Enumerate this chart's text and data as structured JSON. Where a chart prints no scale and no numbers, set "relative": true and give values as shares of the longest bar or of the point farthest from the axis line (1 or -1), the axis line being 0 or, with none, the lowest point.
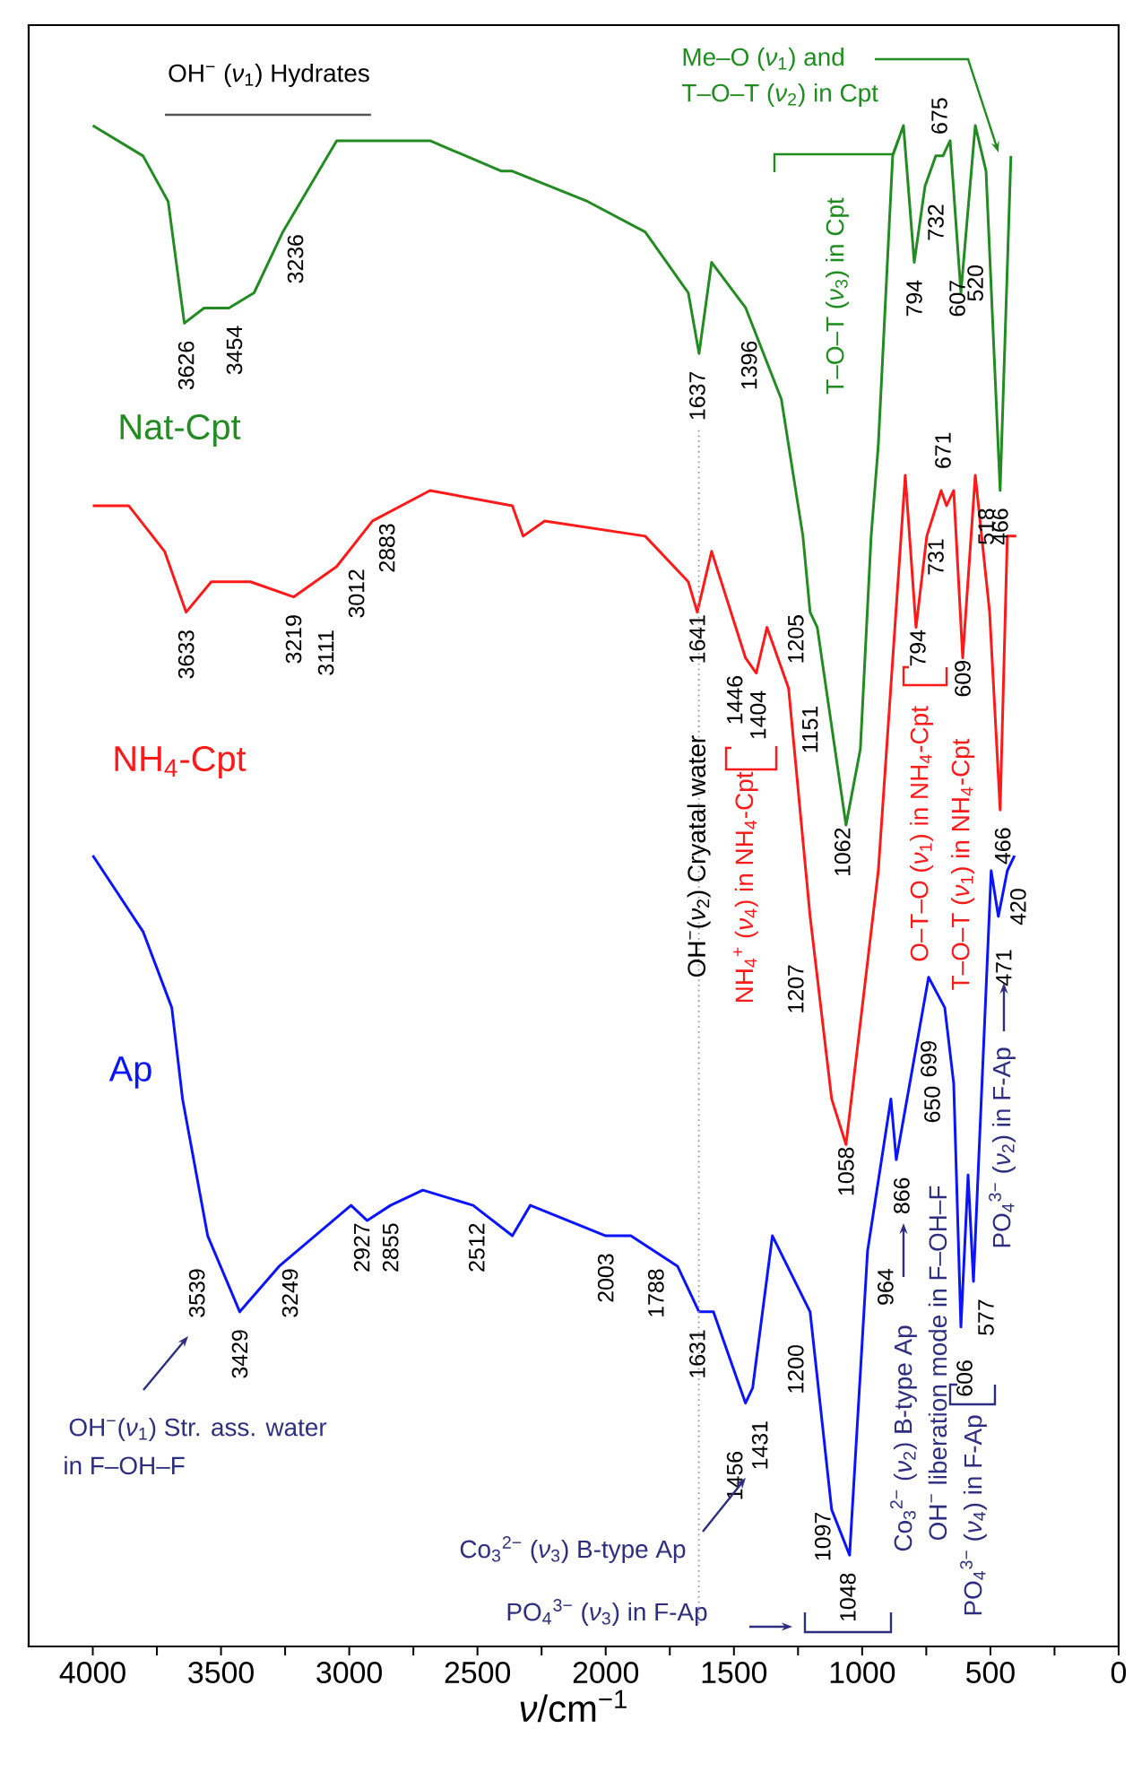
{
  "chart_data": {
    "type": "line",
    "relative": true,
    "xlabel": "*ν*/cm$^{−1}$",
    "xlim": [
      4250,
      0
    ],
    "xticks": [
      4000,
      {
        "value": 3750,
        "label": null
      },
      3500,
      {
        "value": 3250,
        "label": null
      },
      3000,
      {
        "value": 2750,
        "label": null
      },
      2500,
      {
        "value": 2250,
        "label": null
      },
      2000,
      {
        "value": 1750,
        "label": null
      },
      1500,
      {
        "value": 1250,
        "label": null
      },
      1000,
      {
        "value": 750,
        "label": null
      },
      500,
      {
        "value": 250,
        "label": null
      },
      0
    ],
    "series": [
      {
        "name": "Nat-Cpt",
        "color": "#228b22",
        "x": [
          4000,
          3804,
          3706,
          3643,
          3566,
          3469,
          3371,
          3259,
          3189,
          3049,
          2909,
          2685,
          2406,
          2364,
          2070,
          1846,
          1678,
          1636,
          1587,
          1454,
          1315,
          1231,
          1203,
          1175,
          1063,
          1007,
          965,
          937,
          881,
          839,
          797,
          755,
          713,
          685,
          657,
          615,
          559,
          517,
          462,
          420
        ],
        "values": [
          1.0,
          0.98,
          0.95,
          0.87,
          0.88,
          0.88,
          0.89,
          0.93,
          0.95,
          0.99,
          0.99,
          0.99,
          0.97,
          0.97,
          0.95,
          0.93,
          0.89,
          0.85,
          0.91,
          0.88,
          0.82,
          0.73,
          0.68,
          0.67,
          0.54,
          0.59,
          0.73,
          0.79,
          0.98,
          1.0,
          0.91,
          0.96,
          0.98,
          0.98,
          0.99,
          0.89,
          1.0,
          0.97,
          0.76,
          0.98
        ]
      },
      {
        "name": "NH$_{4}$-Cpt",
        "color": "#ff1a1a",
        "x": [
          4000,
          3860,
          3720,
          3636,
          3538,
          3385,
          3217,
          3049,
          2909,
          2685,
          2364,
          2322,
          2238,
          1846,
          1678,
          1643,
          1587,
          1455,
          1413,
          1371,
          1287,
          1203,
          1119,
          1063,
          937,
          832,
          790,
          748,
          692,
          671,
          643,
          608,
          559,
          503,
          462,
          434,
          399
        ],
        "values": [
          0.75,
          0.75,
          0.72,
          0.68,
          0.7,
          0.7,
          0.69,
          0.71,
          0.74,
          0.76,
          0.75,
          0.73,
          0.74,
          0.73,
          0.7,
          0.68,
          0.72,
          0.65,
          0.64,
          0.67,
          0.63,
          0.48,
          0.36,
          0.33,
          0.51,
          0.77,
          0.67,
          0.73,
          0.76,
          0.75,
          0.76,
          0.65,
          0.77,
          0.68,
          0.55,
          0.73,
          0.73
        ]
      },
      {
        "name": "Ap",
        "color": "#0a14ff",
        "x": [
          4000,
          3804,
          3692,
          3650,
          3552,
          3427,
          3273,
          2993,
          2930,
          2839,
          2713,
          2517,
          2364,
          2294,
          2000,
          1902,
          1720,
          1636,
          1580,
          1455,
          1427,
          1350,
          1203,
          1119,
          1049,
          979,
          888,
          867,
          741,
          678,
          643,
          615,
          587,
          566,
          497,
          469,
          434,
          406
        ],
        "values": [
          0.52,
          0.47,
          0.42,
          0.36,
          0.27,
          0.22,
          0.25,
          0.29,
          0.28,
          0.29,
          0.3,
          0.29,
          0.27,
          0.29,
          0.27,
          0.27,
          0.25,
          0.22,
          0.22,
          0.16,
          0.17,
          0.27,
          0.22,
          0.09,
          0.06,
          0.26,
          0.36,
          0.32,
          0.44,
          0.42,
          0.37,
          0.21,
          0.31,
          0.24,
          0.51,
          0.48,
          0.51,
          0.52
        ]
      }
    ],
    "ref_lines": [
      {
        "axis": "x",
        "value": 1637,
        "label": "OH$^{−}$(*ν*$_{2}$) Cryatal water",
        "color": "#999999",
        "line_style": "dotted"
      }
    ],
    "annotations": [
      "OH$^{−}$ (*ν*$_{1}$) Hydrates",
      "Me–O (*ν*$_{1}$) and",
      "T–O–T (*ν*$_{2}$) in Cpt",
      "T–O–T (*ν*$_{3}$) in Cpt",
      "NH$_{4}$$^{+}$ (*ν*$_{4}$) in NH$_{4}$-Cpt",
      "O–T–O (*ν*$_{1}$) in NH$_{4}$-Cpt",
      "T–O–T (*ν*$_{1}$) in NH$_{4}$-Cpt",
      "PO$_{4}$$^{3−}$ (*ν*$_{2}$) in F-Ap",
      "Co$_{3}$$^{2−}$ (*ν*$_{2}$) B-type Ap",
      "OH$^{−}$ liberation mode in F–OH–F",
      "PO$_{4}$$^{3−}$ (*ν*$_{4}$) in F-Ap",
      "OH$^{−}$(*ν*$_{1}$) Str. ass. water",
      "in F–OH–F",
      "Co$_{3}$$^{2−}$ (*ν*$_{3}$) B-type Ap",
      "PO$_{4}$$^{3−}$ (*ν*$_{3}$) in F-Ap",
      "3626",
      "3454",
      "3236",
      "1637",
      "1396",
      "794",
      "732",
      "675",
      "607",
      "520",
      "466",
      "3633",
      "3219",
      "3111",
      "3012",
      "2883",
      "1641",
      "1446",
      "1404",
      "1205",
      "1151",
      "1062",
      "1207",
      "1058",
      "731",
      "671",
      "794",
      "609",
      "518",
      "466",
      "471",
      "420",
      "699",
      "650",
      "964",
      "866",
      "606",
      "577",
      "3539",
      "3429",
      "3249",
      "2927",
      "2855",
      "2512",
      "2003",
      "1788",
      "1631",
      "1456",
      "1431",
      "1200",
      "1097",
      "1048"
    ]
  }
}
